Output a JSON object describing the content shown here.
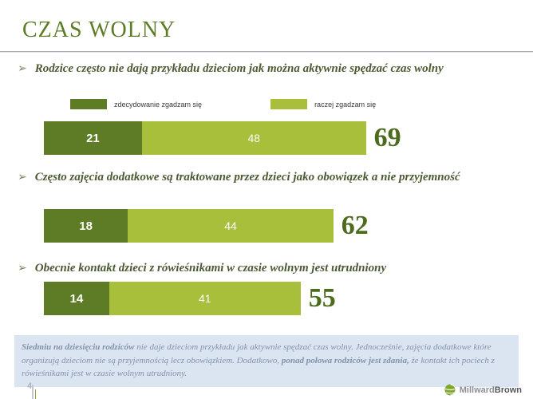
{
  "slide": {
    "title": "CZAS WOLNY",
    "page_number": "4",
    "bullet_arrow": "➢",
    "logo": {
      "part1": "Millward",
      "part2": "Brown"
    }
  },
  "legend": [
    {
      "label": "zdecydowanie zgadzam się",
      "color": "#5e7b26"
    },
    {
      "label": "raczej zgadzam się",
      "color": "#a7bf3a"
    }
  ],
  "chart_data": {
    "type": "bar",
    "stacked": true,
    "unit": "%",
    "legend_position": "top",
    "series_names": [
      "zdecydowanie zgadzam się",
      "raczej zgadzam się"
    ],
    "colors": {
      "zdecydowanie": "#5e7b26",
      "raczej": "#a7bf3a",
      "total_text": "#4d6b1d"
    },
    "items": [
      {
        "statement": "Rodzice często nie dają przykładu dzieciom jak można aktywnie spędzać czas wolny",
        "values": [
          21,
          48
        ],
        "total": 69
      },
      {
        "statement": "Często zajęcia dodatkowe są traktowane przez dzieci jako obowiązek a nie przyjemność",
        "values": [
          18,
          44
        ],
        "total": 62
      },
      {
        "statement": "Obecnie kontakt dzieci z rówieśnikami w czasie wolnym jest utrudniony",
        "values": [
          14,
          41
        ],
        "total": 55
      }
    ]
  },
  "footer": {
    "segments": [
      {
        "text": "Siedmiu na dziesięciu rodziców",
        "bold": true
      },
      {
        "text": " nie daje dzieciom przykładu jak aktywnie spędzać czas wolny. Jednocześnie, zajęcia dodatkowe które organizują dzieciom nie są przyjemnością lecz obowiązkiem. Dodatkowo, ",
        "bold": false
      },
      {
        "text": "ponad połowa rodziców jest zdania,",
        "bold": true
      },
      {
        "text": " że kontakt ich pociech z rówieśnikami jest w czasie wolnym utrudniony.",
        "bold": false
      }
    ]
  }
}
